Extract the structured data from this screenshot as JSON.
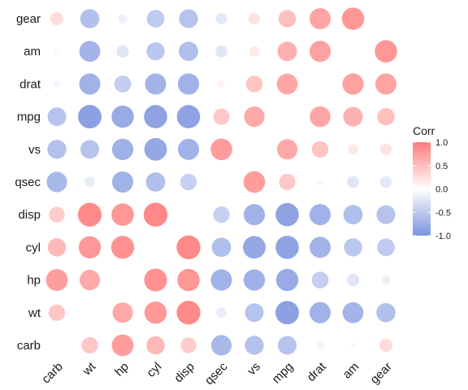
{
  "chart_data": {
    "type": "heatmap",
    "subtype": "correlation-circle",
    "x_categories": [
      "carb",
      "wt",
      "hp",
      "cyl",
      "disp",
      "qsec",
      "vs",
      "mpg",
      "drat",
      "am",
      "gear"
    ],
    "y_categories": [
      "gear",
      "am",
      "drat",
      "mpg",
      "vs",
      "qsec",
      "disp",
      "cyl",
      "hp",
      "wt",
      "carb"
    ],
    "matrix": [
      [
        0.27,
        -0.58,
        -0.13,
        -0.49,
        -0.56,
        -0.21,
        0.21,
        0.48,
        0.7,
        0.79,
        null
      ],
      [
        0.06,
        -0.69,
        -0.24,
        -0.52,
        -0.59,
        -0.23,
        0.17,
        0.6,
        0.71,
        null,
        0.79
      ],
      [
        -0.09,
        -0.71,
        -0.45,
        -0.7,
        -0.71,
        0.09,
        0.44,
        0.68,
        null,
        0.71,
        0.7
      ],
      [
        -0.55,
        -0.87,
        -0.78,
        -0.85,
        -0.85,
        0.42,
        0.66,
        null,
        0.68,
        0.6,
        0.48
      ],
      [
        -0.57,
        -0.55,
        -0.72,
        -0.81,
        -0.71,
        0.74,
        null,
        0.66,
        0.44,
        0.17,
        0.21
      ],
      [
        -0.66,
        -0.17,
        -0.71,
        -0.59,
        -0.43,
        null,
        0.74,
        0.42,
        0.09,
        -0.23,
        -0.21
      ],
      [
        0.39,
        0.89,
        0.79,
        0.9,
        null,
        -0.43,
        -0.71,
        -0.85,
        -0.71,
        -0.59,
        -0.56
      ],
      [
        0.53,
        0.78,
        0.83,
        null,
        0.9,
        -0.59,
        -0.81,
        -0.85,
        -0.7,
        -0.52,
        -0.49
      ],
      [
        0.75,
        0.66,
        null,
        0.83,
        0.79,
        -0.71,
        -0.72,
        -0.78,
        -0.45,
        -0.24,
        -0.13
      ],
      [
        0.43,
        null,
        0.66,
        0.78,
        0.89,
        -0.17,
        -0.55,
        -0.87,
        -0.71,
        -0.69,
        -0.58
      ],
      [
        null,
        0.43,
        0.75,
        0.53,
        0.39,
        -0.66,
        -0.57,
        -0.55,
        -0.09,
        0.06,
        0.27
      ]
    ],
    "legend": {
      "title": "Corr",
      "placement": "right",
      "ticks": [
        1.0,
        0.5,
        0.0,
        -0.5,
        -1.0
      ],
      "tick_labels": [
        "1.0",
        "0.5",
        "0.0",
        "-0.5",
        "-1.0"
      ],
      "range": [
        -1,
        1
      ]
    },
    "colors": {
      "low": "#7b93de",
      "mid": "#ffffff",
      "high": "#ff7b7b"
    },
    "grid": false
  }
}
